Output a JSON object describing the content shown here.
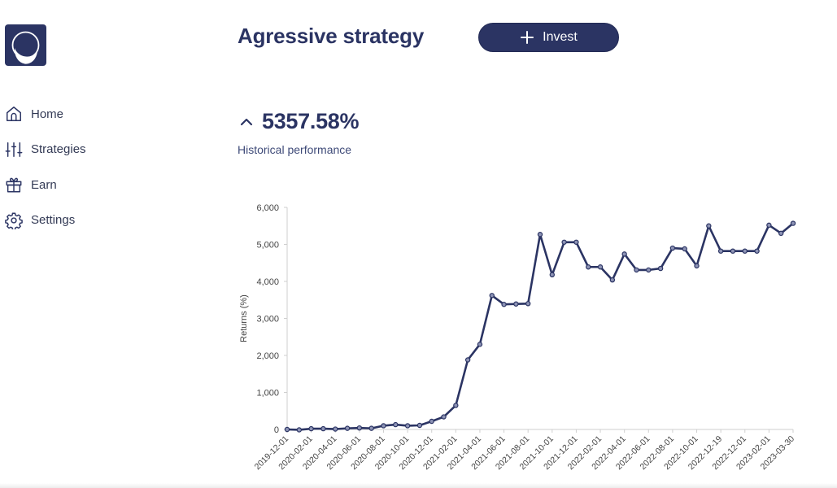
{
  "sidebar": {
    "logo": "crescent-moon-logo",
    "items": [
      {
        "label": "Home",
        "icon": "home-icon"
      },
      {
        "label": "Strategies",
        "icon": "sliders-icon"
      },
      {
        "label": "Earn",
        "icon": "gift-icon"
      },
      {
        "label": "Settings",
        "icon": "gear-icon"
      }
    ]
  },
  "header": {
    "title": "Agressive strategy",
    "invest_label": "Invest"
  },
  "performance": {
    "value": "5357.58%",
    "subtitle": "Historical performance"
  },
  "colors": {
    "primary": "#2b3463",
    "text": "#333a55",
    "axis": "#cccccc"
  },
  "chart_data": {
    "type": "line",
    "ylabel": "Returns (%)",
    "xlabel": "",
    "ylim": [
      0,
      6000
    ],
    "yticks": [
      0,
      1000,
      2000,
      3000,
      4000,
      5000,
      6000
    ],
    "ytick_labels": [
      "0",
      "1,000",
      "2,000",
      "3,000",
      "4,000",
      "5,000",
      "6,000"
    ],
    "x_tick_labels": [
      "2019-12-01",
      "2020-02-01",
      "2020-04-01",
      "2020-06-01",
      "2020-08-01",
      "2020-10-01",
      "2020-12-01",
      "2021-02-01",
      "2021-04-01",
      "2021-06-01",
      "2021-08-01",
      "2021-10-01",
      "2021-12-01",
      "2022-02-01",
      "2022-04-01",
      "2022-06-01",
      "2022-08-01",
      "2022-10-01",
      "2022-12-19",
      "2022-12-01",
      "2023-02-01",
      "2023-03-30"
    ],
    "grid": false,
    "series": [
      {
        "name": "Returns",
        "values": [
          0,
          -10,
          20,
          20,
          10,
          30,
          40,
          30,
          100,
          130,
          100,
          110,
          220,
          340,
          650,
          1880,
          2300,
          3620,
          3380,
          3390,
          3400,
          5270,
          4180,
          5060,
          5060,
          4390,
          4390,
          4040,
          4740,
          4310,
          4310,
          4350,
          4900,
          4880,
          4420,
          5500,
          4820,
          4820,
          4820,
          4820,
          5520,
          5300,
          5570
        ]
      }
    ]
  }
}
